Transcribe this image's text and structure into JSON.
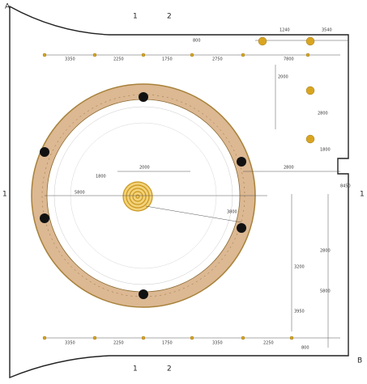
{
  "markers": {
    "corner_a": "A",
    "corner_b": "B",
    "section_1_top": "1",
    "section_2_top": "2",
    "section_1_bottom": "1",
    "section_2_bottom": "2",
    "section_1_left": "1",
    "section_1_right": "1"
  },
  "dimensions": {
    "top": [
      "3350",
      "2250",
      "1750",
      "2750",
      "1240",
      "3540",
      "7800",
      "800"
    ],
    "bottom": [
      "3350",
      "2250",
      "1750",
      "3350",
      "2250",
      "800"
    ],
    "right": [
      "2000",
      "2800",
      "1800",
      "8450",
      "3200",
      "2800",
      "5800",
      "3950"
    ],
    "center": [
      "2000",
      "2800",
      "5800",
      "1800",
      "3800"
    ]
  }
}
